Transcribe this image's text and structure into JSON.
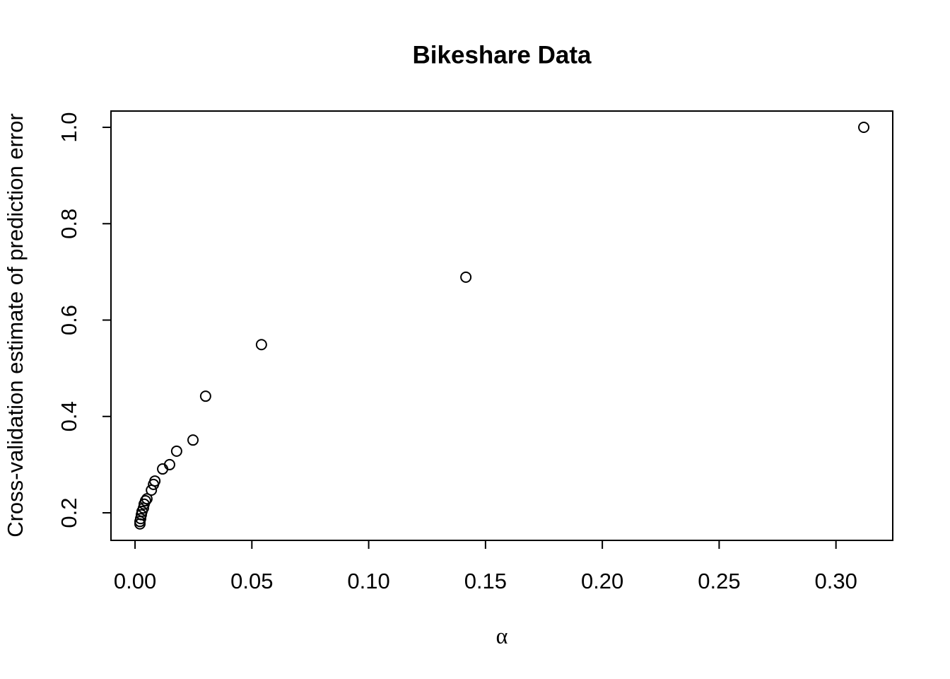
{
  "chart_data": {
    "type": "scatter",
    "title": "Bikeshare Data",
    "x_label": "α",
    "y_label": "Cross-validation estimate of prediction error",
    "x": [
      0.3119,
      0.1416,
      0.0541,
      0.0302,
      0.0248,
      0.0178,
      0.0148,
      0.0118,
      0.0085,
      0.0079,
      0.007,
      0.0051,
      0.0045,
      0.0039,
      0.0036,
      0.003,
      0.0027,
      0.0024,
      0.0021,
      0.0021
    ],
    "values": [
      1.0,
      0.689,
      0.549,
      0.442,
      0.351,
      0.328,
      0.3,
      0.291,
      0.266,
      0.259,
      0.247,
      0.229,
      0.225,
      0.218,
      0.21,
      0.203,
      0.196,
      0.188,
      0.182,
      0.177
    ],
    "color": "#000000",
    "xlim": [
      -0.0103,
      0.3243
    ],
    "ylim": [
      0.1428,
      1.0338
    ],
    "xticks": [
      {
        "value": 0,
        "label": "0.00"
      },
      0.05,
      {
        "value": 0.1,
        "label": "0.10"
      },
      0.15,
      {
        "value": 0.2,
        "label": "0.20"
      },
      0.25,
      {
        "value": 0.3,
        "label": "0.30"
      }
    ],
    "yticks": [
      0.2,
      0.4,
      0.6,
      0.8,
      {
        "value": 1,
        "label": "1.0"
      }
    ],
    "grid": false
  }
}
